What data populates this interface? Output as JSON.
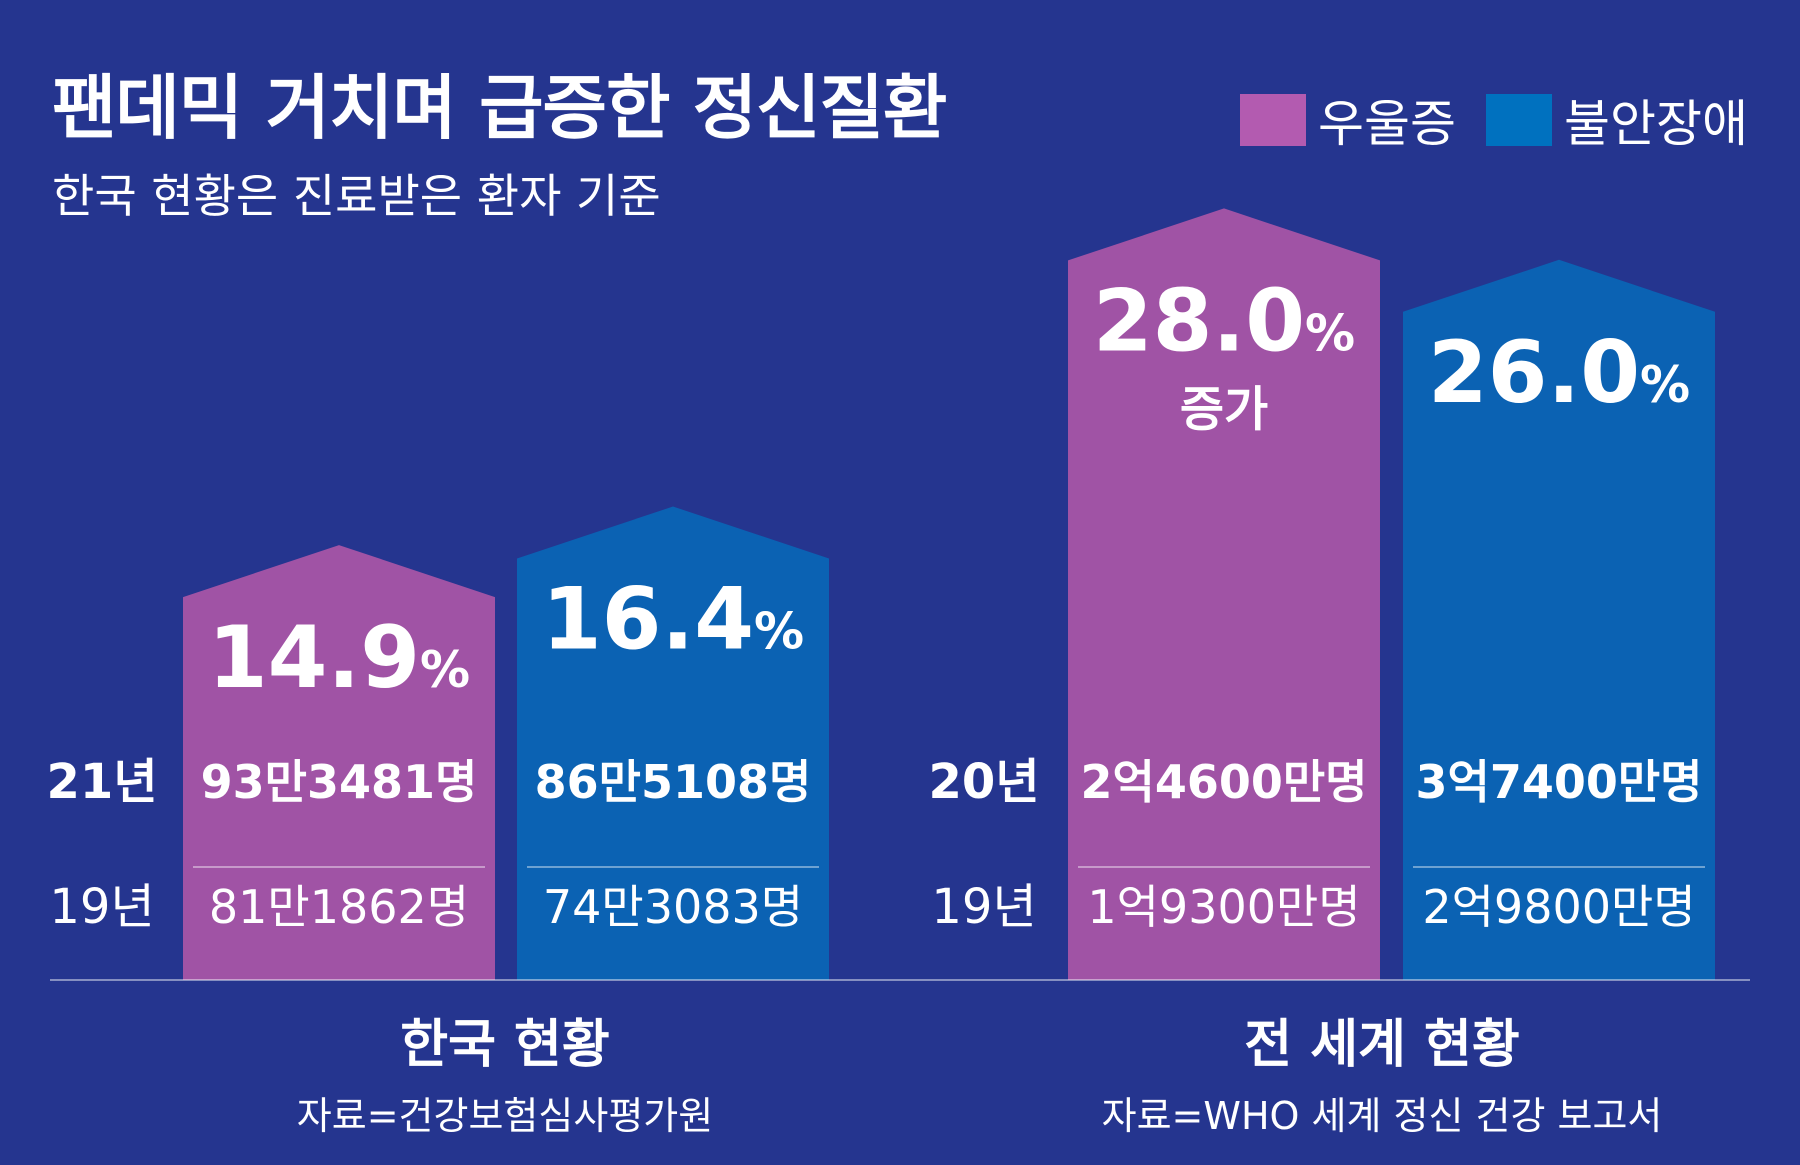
{
  "title": "팬데믹 거치며 급증한 정신질환",
  "subtitle": "한국 현황은 진료받은 환자 기준",
  "legend": [
    {
      "label": "우울증",
      "color": "#b35bb0"
    },
    {
      "label": "불안장애",
      "color": "#0071bf"
    }
  ],
  "colors": {
    "background": "#25358f",
    "depression": "#a053a5",
    "anxiety": "#0b62b3"
  },
  "chart_data": {
    "type": "bar",
    "unit": "%",
    "series": [
      {
        "name": "우울증",
        "color": "#a053a5"
      },
      {
        "name": "불안장애",
        "color": "#0b62b3"
      }
    ],
    "groups": [
      {
        "name": "한국 현황",
        "source": "자료=건강보험심사평가원",
        "year_labels": [
          "21년",
          "19년"
        ],
        "bars": [
          {
            "series": "우울증",
            "value": 14.9,
            "value_text": "14.9",
            "pct_sign": "%",
            "note": "",
            "recent": "93만3481명",
            "previous": "81만1862명"
          },
          {
            "series": "불안장애",
            "value": 16.4,
            "value_text": "16.4",
            "pct_sign": "%",
            "note": "",
            "recent": "86만5108명",
            "previous": "74만3083명"
          }
        ]
      },
      {
        "name": "전 세계 현황",
        "source": "자료=WHO 세계 정신 건강 보고서",
        "year_labels": [
          "20년",
          "19년"
        ],
        "bars": [
          {
            "series": "우울증",
            "value": 28.0,
            "value_text": "28.0",
            "pct_sign": "%",
            "note": "증가",
            "recent": "2억4600만명",
            "previous": "1억9300만명"
          },
          {
            "series": "불안장애",
            "value": 26.0,
            "value_text": "26.0",
            "pct_sign": "%",
            "note": "",
            "recent": "3억7400만명",
            "previous": "2억9800만명"
          }
        ]
      }
    ]
  }
}
